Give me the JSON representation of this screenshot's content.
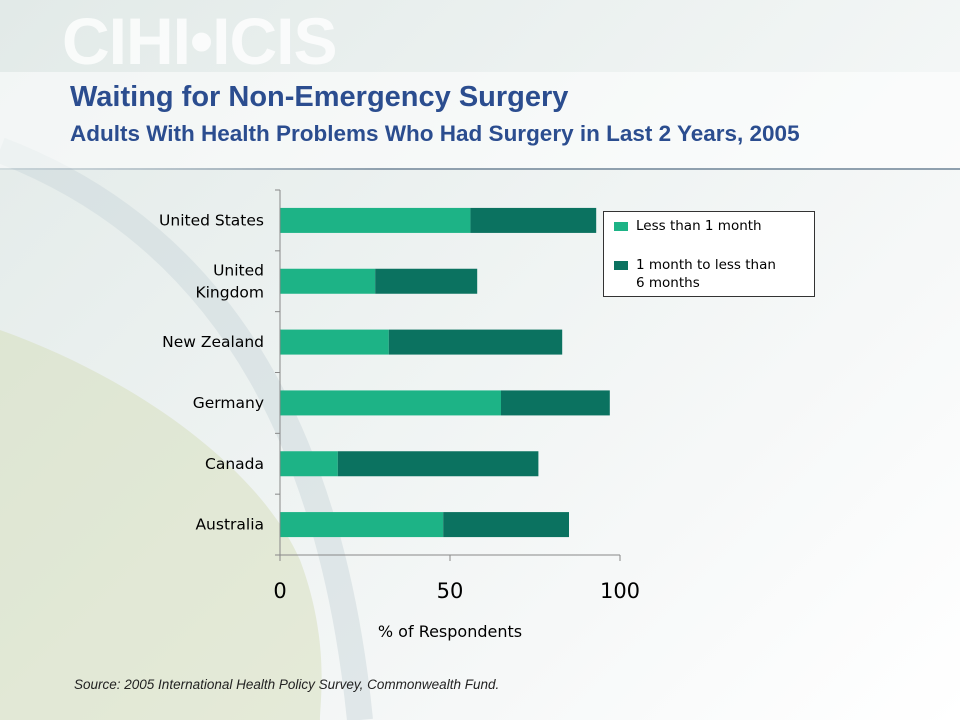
{
  "logo": "CIHI•ICIS",
  "title": "Waiting for Non-Emergency Surgery",
  "subtitle": "Adults With Health Problems Who Had Surgery in Last 2 Years, 2005",
  "source": "Source: 2005 International Health Policy Survey, Commonwealth Fund.",
  "colors": {
    "title": "#2b4d8f",
    "series_less_than_1_month": "#1db386",
    "series_1_to_6_months": "#0b7260"
  },
  "chart_data": {
    "type": "bar",
    "orientation": "horizontal",
    "stacked": true,
    "categories": [
      [
        "United States"
      ],
      [
        "United",
        "Kingdom"
      ],
      [
        "New Zealand"
      ],
      [
        "Germany"
      ],
      [
        "Canada"
      ],
      [
        "Australia"
      ]
    ],
    "series": [
      {
        "name": "Less than 1 month",
        "color": "#1db386",
        "values": [
          56,
          28,
          32,
          65,
          17,
          48
        ]
      },
      {
        "name": "1 month to less than 6 months",
        "color": "#0b7260",
        "values": [
          37,
          30,
          51,
          32,
          59,
          37
        ]
      }
    ],
    "title": "",
    "xlabel": "% of Respondents",
    "ylabel": "",
    "xlim": [
      0,
      100
    ],
    "xticks": [
      "0",
      "50",
      "100"
    ],
    "grid": false,
    "legend": {
      "position": "top-right",
      "items": [
        {
          "lines": [
            "Less than 1 month"
          ]
        },
        {
          "lines": [
            "1 month to less than",
            "6 months"
          ]
        }
      ]
    }
  }
}
